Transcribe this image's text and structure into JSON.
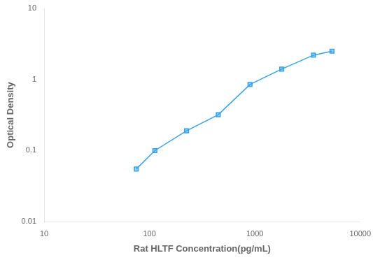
{
  "chart_data": {
    "type": "line",
    "x": [
      75,
      112.5,
      225,
      450,
      900,
      1800,
      3600,
      5400
    ],
    "values": [
      0.055,
      0.1,
      0.19,
      0.32,
      0.85,
      1.4,
      2.2,
      2.5
    ],
    "xlabel": "Rat HLTF Concentration(pg/mL)",
    "ylabel": "Optical Density",
    "xlim": [
      10,
      10000
    ],
    "ylim": [
      0.01,
      10
    ],
    "xticks": [
      10,
      100,
      1000,
      10000
    ],
    "yticks": [
      0.01,
      0.1,
      1,
      10
    ],
    "log": true,
    "grid": false,
    "marker": "square"
  }
}
